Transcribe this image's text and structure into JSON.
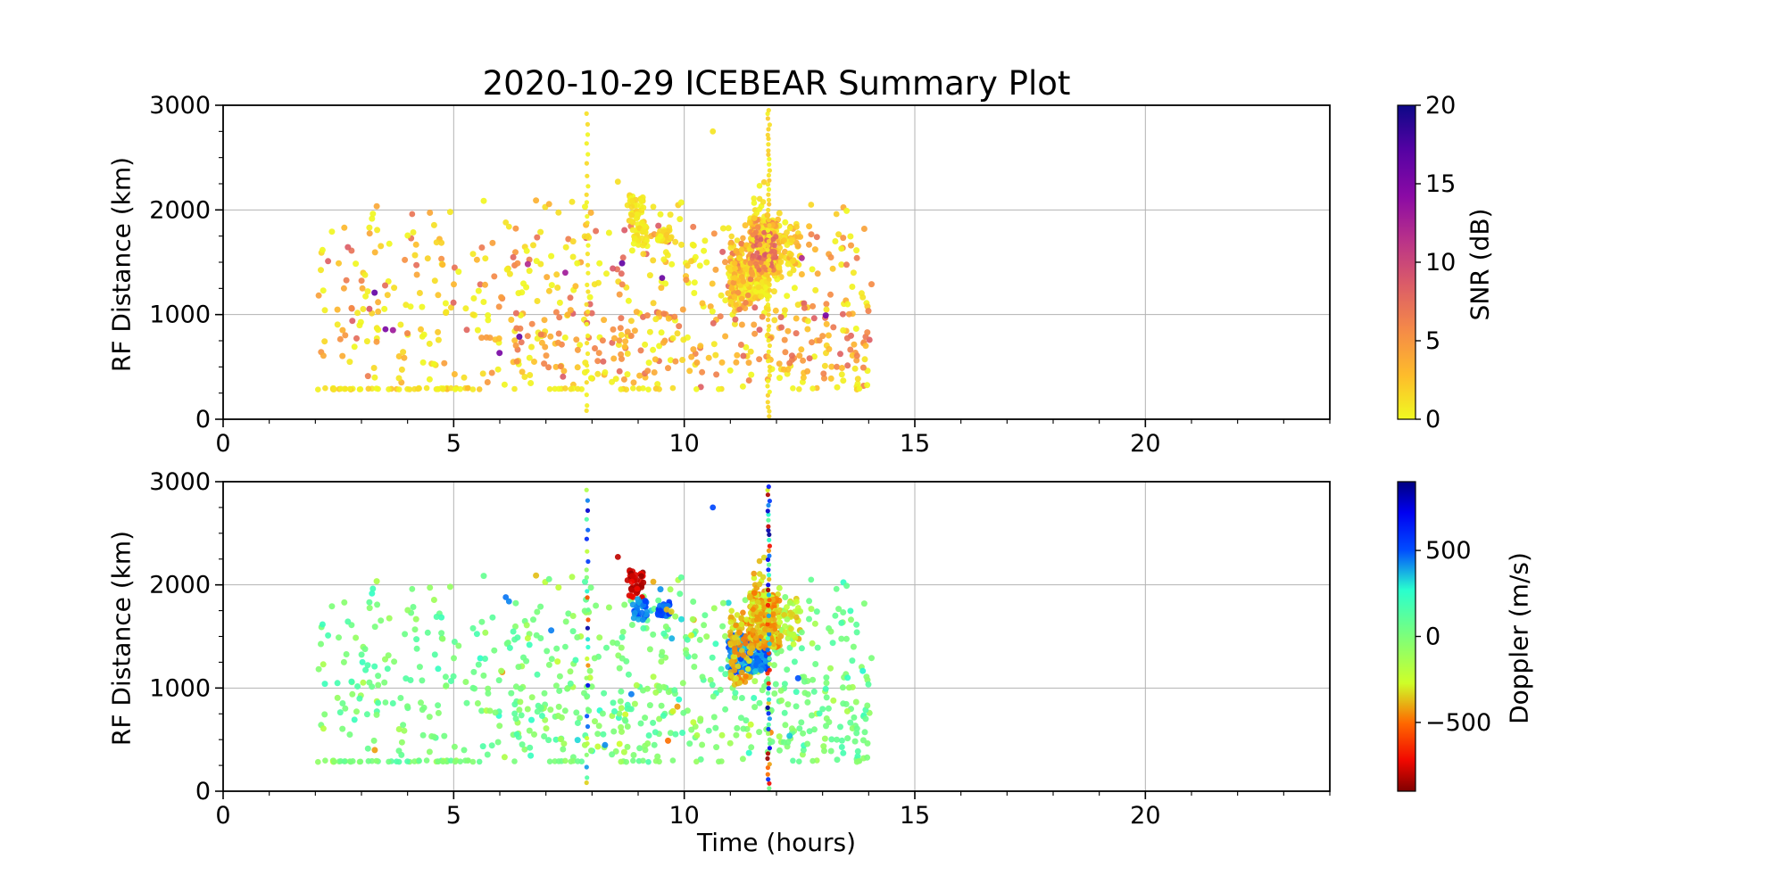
{
  "title": "2020-10-29 ICEBEAR Summary Plot",
  "axes": {
    "xlabel": "Time (hours)",
    "ylabel": "RF Distance (km)",
    "xlim": [
      0,
      24
    ],
    "ylim": [
      0,
      3000
    ],
    "xticks": [
      0,
      5,
      10,
      15,
      20
    ],
    "xtick_labels": [
      "0",
      "5",
      "10",
      "15",
      "20"
    ],
    "x_minor_step": 1,
    "yticks": [
      0,
      1000,
      2000,
      3000
    ],
    "ytick_labels": [
      "0",
      "1000",
      "2000",
      "3000"
    ],
    "y_minor_step": 250,
    "grid": true,
    "grid_color": "#b3b3b3",
    "spine_color": "#000000"
  },
  "panels": [
    {
      "name": "snr",
      "value_key": "snr",
      "colorbar": {
        "label": "SNR (dB)",
        "range": [
          0,
          20
        ],
        "ticks": [
          0,
          5,
          10,
          15,
          20
        ],
        "tick_labels": [
          "0",
          "5",
          "10",
          "15",
          "20"
        ],
        "colormap": "plasma_r"
      }
    },
    {
      "name": "doppler",
      "value_key": "dop",
      "colorbar": {
        "label": "Doppler (m/s)",
        "range": [
          -900,
          900
        ],
        "ticks": [
          -500,
          0,
          500
        ],
        "tick_labels": [
          "−500",
          "0",
          "500"
        ],
        "colormap": "jet_r"
      }
    }
  ],
  "colormaps": {
    "plasma_r": [
      [
        0,
        "#f0f921"
      ],
      [
        0.14,
        "#febc2b"
      ],
      [
        0.29,
        "#f48849"
      ],
      [
        0.43,
        "#db5c68"
      ],
      [
        0.57,
        "#b93289"
      ],
      [
        0.71,
        "#8b0aa5"
      ],
      [
        0.86,
        "#5402a3"
      ],
      [
        1,
        "#0d0887"
      ]
    ],
    "jet_r": [
      [
        0,
        "#800000"
      ],
      [
        0.1,
        "#f10800"
      ],
      [
        0.22,
        "#ff6800"
      ],
      [
        0.35,
        "#ceff29"
      ],
      [
        0.5,
        "#7dff7a"
      ],
      [
        0.65,
        "#29ffce"
      ],
      [
        0.78,
        "#004cff"
      ],
      [
        0.9,
        "#0000f1"
      ],
      [
        1,
        "#000080"
      ]
    ]
  },
  "chart_data": {
    "type": "scatter",
    "x_unit": "hours",
    "y_unit": "km",
    "point_alpha": 0.92,
    "clusters": [
      {
        "name": "background-left",
        "seed": 101,
        "n": 125,
        "t": [
          2.02,
          5.6
        ],
        "rf": [
          350,
          1840
        ],
        "snr": [
          0,
          9,
          2.2
        ],
        "dop": {
          "type": "normal",
          "mean": 30,
          "sd": 95,
          "outlier": 0.06,
          "outlier_range": [
            -500,
            500
          ]
        },
        "r": 3.5
      },
      {
        "name": "background-right",
        "seed": 102,
        "n": 375,
        "t": [
          5.6,
          14.1
        ],
        "rf": [
          300,
          1850
        ],
        "snr": [
          0,
          9,
          2.2
        ],
        "dop": {
          "type": "normal",
          "mean": 30,
          "sd": 95,
          "outlier": 0.07,
          "outlier_range": [
            -500,
            500
          ]
        },
        "r": 3.5
      },
      {
        "name": "background-upper",
        "seed": 103,
        "n": 26,
        "t": [
          2.3,
          14.0
        ],
        "rf": [
          1850,
          2100
        ],
        "snr": [
          0,
          5,
          1.8
        ],
        "dop": {
          "type": "normal",
          "mean": 40,
          "sd": 160,
          "outlier": 0.12,
          "outlier_range": [
            -450,
            450
          ]
        },
        "r": 3.5
      },
      {
        "name": "orange-band",
        "seed": 104,
        "n": 125,
        "t": [
          5.7,
          14.05
        ],
        "rf": [
          430,
          1060
        ],
        "snr": [
          2.5,
          8,
          1.3
        ],
        "dop": {
          "type": "normal",
          "mean": 10,
          "sd": 110,
          "outlier": 0.05,
          "outlier_range": [
            -400,
            400
          ]
        },
        "r": 3.5
      },
      {
        "name": "bottom-row-left",
        "seed": 105,
        "n": 48,
        "t": [
          2.05,
          5.6
        ],
        "rf": [
          283,
          299
        ],
        "snr": [
          0,
          3,
          1.5
        ],
        "dop": {
          "type": "normal",
          "mean": 15,
          "sd": 70,
          "outlier": 0.04,
          "outlier_range": [
            -300,
            300
          ]
        },
        "r": 3.3
      },
      {
        "name": "bottom-row-right",
        "seed": 106,
        "n": 30,
        "t": [
          5.9,
          14.0
        ],
        "rf": [
          283,
          299
        ],
        "snr": [
          0,
          3,
          1.5
        ],
        "dop": {
          "type": "normal",
          "mean": 15,
          "sd": 70,
          "outlier": 0.04,
          "outlier_range": [
            -300,
            300
          ]
        },
        "r": 3.3
      },
      {
        "name": "high-snr-dots",
        "seed": 107,
        "n": 7,
        "t": [
          2.8,
          13.6
        ],
        "rf": [
          620,
          1660
        ],
        "snr": [
          11,
          17,
          1
        ],
        "dop": {
          "type": "normal",
          "mean": 0,
          "sd": 160,
          "outlier": 0,
          "outlier_range": [
            0,
            0
          ]
        },
        "r": 3.5
      },
      {
        "name": "blob9-darkred",
        "seed": 108,
        "n": 42,
        "t": [
          8.8,
          9.12
        ],
        "rf": [
          1860,
          2140
        ],
        "snr": [
          0,
          2,
          1.2
        ],
        "dop": {
          "type": "uniform",
          "range": [
            -880,
            -700
          ]
        },
        "r": 3.4
      },
      {
        "name": "blob9-cyan",
        "seed": 109,
        "n": 34,
        "t": [
          8.86,
          9.2
        ],
        "rf": [
          1660,
          1870
        ],
        "snr": [
          0,
          2,
          1.2
        ],
        "dop": {
          "type": "uniform",
          "range": [
            380,
            540
          ]
        },
        "r": 3.4
      },
      {
        "name": "blob9-blue",
        "seed": 111,
        "n": 24,
        "t": [
          9.42,
          9.68
        ],
        "rf": [
          1690,
          1840
        ],
        "snr": [
          0,
          2.5,
          1.2
        ],
        "dop": {
          "type": "uniform",
          "range": [
            430,
            620
          ]
        },
        "r": 3.4
      },
      {
        "name": "structure-cyan-mass",
        "seed": 112,
        "n": 150,
        "t": [
          10.95,
          11.75
        ],
        "rf": [
          1150,
          1530
        ],
        "snr": [
          0,
          3,
          1.5
        ],
        "dop": {
          "type": "uniform",
          "range": [
            310,
            560
          ]
        },
        "r": 3.4
      },
      {
        "name": "structure-blue-patch",
        "seed": 113,
        "n": 36,
        "t": [
          11.55,
          11.85
        ],
        "rf": [
          1160,
          1430
        ],
        "snr": [
          0,
          3,
          1.5
        ],
        "dop": {
          "type": "uniform",
          "range": [
            380,
            580
          ]
        },
        "r": 3.4
      },
      {
        "name": "structure-orange-columns",
        "seed": 114,
        "n": 90,
        "t": [
          10.98,
          11.45
        ],
        "cols": 6,
        "rf": [
          1030,
          1760
        ],
        "snr": [
          1,
          7,
          1.6
        ],
        "dop": {
          "type": "uniform",
          "range": [
            -480,
            -280
          ]
        },
        "r": 3.3
      },
      {
        "name": "structure-orange-mass",
        "seed": 115,
        "n": 200,
        "t": [
          11.42,
          12.08
        ],
        "cols": 9,
        "rf": [
          1380,
          1950
        ],
        "snr": [
          0.5,
          6,
          1.6
        ],
        "dop": {
          "type": "uniform",
          "range": [
            -500,
            -230
          ]
        },
        "r": 3.4
      },
      {
        "name": "structure-dark-core",
        "seed": 116,
        "n": 45,
        "t": [
          11.45,
          12.0
        ],
        "cols": 7,
        "rf": [
          1420,
          1800
        ],
        "snr": [
          6,
          9,
          1
        ],
        "dop": {
          "type": "uniform",
          "range": [
            -460,
            -350
          ]
        },
        "r": 3.0
      },
      {
        "name": "structure-tail",
        "seed": 117,
        "n": 42,
        "t": [
          12.08,
          12.52
        ],
        "rf": [
          1400,
          1870
        ],
        "snr": [
          0.5,
          4,
          1.5
        ],
        "dop": {
          "type": "uniform",
          "range": [
            -400,
            -90
          ]
        },
        "r": 3.4
      },
      {
        "name": "structure-spike",
        "seed": 118,
        "n": 10,
        "t": [
          11.5,
          11.74
        ],
        "rf": [
          1950,
          2290
        ],
        "snr": [
          0,
          2,
          1.2
        ],
        "dop": {
          "type": "uniform",
          "range": [
            -430,
            -260
          ]
        },
        "r": 3.3
      }
    ],
    "streaks": [
      {
        "name": "meteor-streak-0790",
        "seed": 121,
        "t": 7.9,
        "t_jitter": 0.02,
        "rf": [
          60,
          2960
        ],
        "step": 95,
        "snr": [
          0,
          1.5,
          1
        ],
        "dop": {
          "type": "uniform",
          "range": [
            -860,
            860
          ]
        },
        "r": 2.6
      },
      {
        "name": "meteor-streak-1183",
        "seed": 122,
        "t": 11.83,
        "t_jitter": 0.025,
        "rf": [
          30,
          3000
        ],
        "step": 48,
        "snr": [
          0,
          2.5,
          1.2
        ],
        "dop": {
          "type": "uniform",
          "range": [
            -880,
            880
          ]
        },
        "r": 2.6
      }
    ],
    "feature_points": [
      {
        "t": 6.13,
        "rf": 1880,
        "snr": 1.0,
        "dop": 450
      },
      {
        "t": 6.2,
        "rf": 1840,
        "snr": 0.8,
        "dop": 430
      },
      {
        "t": 8.56,
        "rf": 2270,
        "snr": 1.2,
        "dop": -800
      },
      {
        "t": 8.77,
        "rf": 2045,
        "snr": 1.0,
        "dop": -790
      },
      {
        "t": 8.86,
        "rf": 2030,
        "snr": 1.5,
        "dop": -720
      },
      {
        "t": 9.33,
        "rf": 2030,
        "snr": 0.8,
        "dop": -400
      },
      {
        "t": 9.62,
        "rf": 1760,
        "snr": 2.2,
        "dop": -380
      },
      {
        "t": 9.72,
        "rf": 1740,
        "snr": 1.4,
        "dop": -350
      },
      {
        "t": 10.62,
        "rf": 2750,
        "snr": 0.9,
        "dop": 520
      },
      {
        "t": 3.52,
        "rf": 860,
        "snr": 15,
        "dop": 40
      },
      {
        "t": 7.42,
        "rf": 1400,
        "snr": 13,
        "dop": 50
      },
      {
        "t": 9.52,
        "rf": 1350,
        "snr": 16,
        "dop": -20
      },
      {
        "t": 12.55,
        "rf": 1540,
        "snr": 12,
        "dop": 30
      },
      {
        "t": 4.1,
        "rf": 1960,
        "snr": 7,
        "dop": 20
      },
      {
        "t": 13.3,
        "rf": 1960,
        "snr": 2,
        "dop": 60
      },
      {
        "t": 12.75,
        "rf": 2050,
        "snr": 1.5,
        "dop": 80
      }
    ]
  }
}
